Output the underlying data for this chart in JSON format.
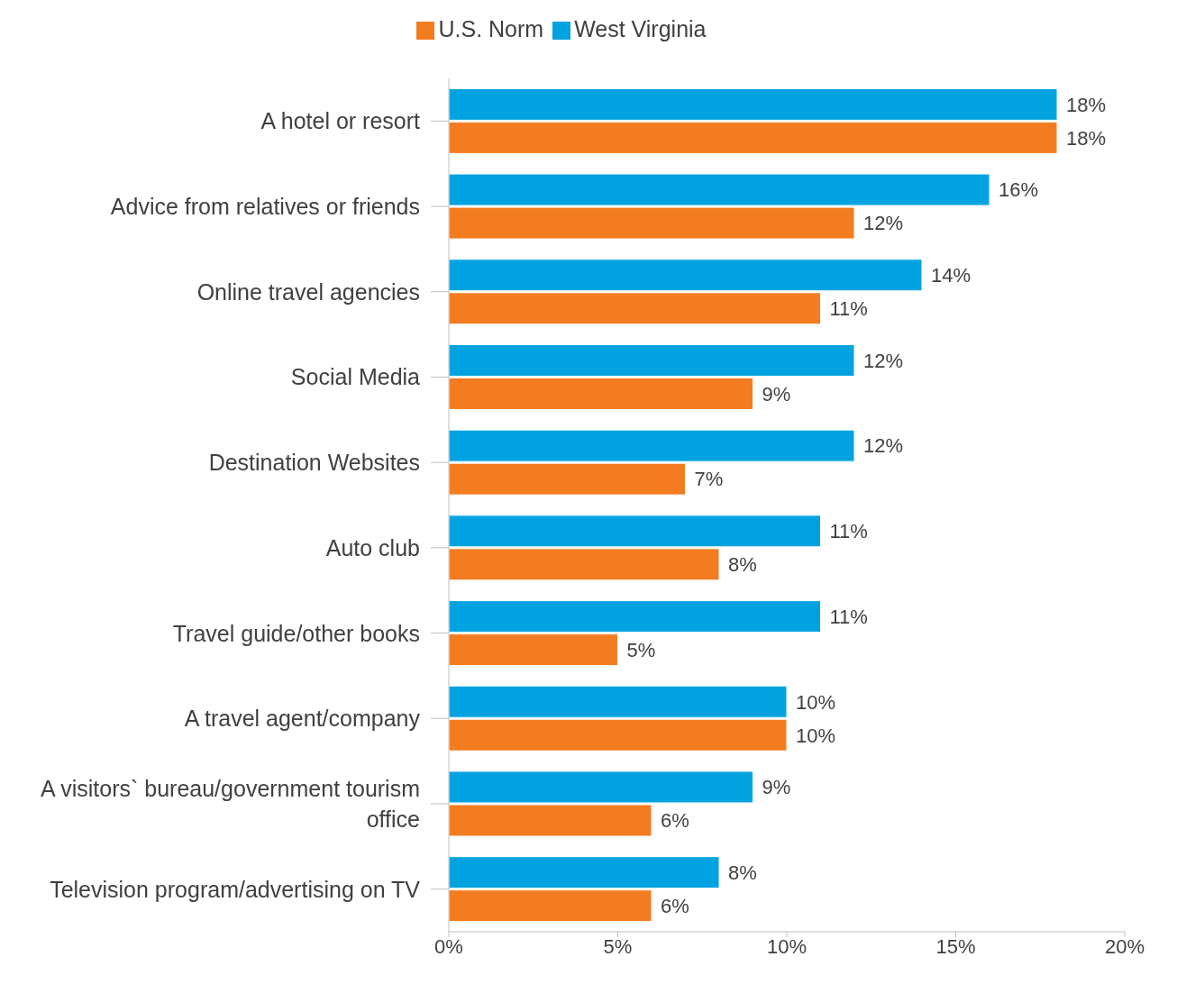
{
  "chart_data": {
    "type": "bar",
    "orientation": "horizontal",
    "categories": [
      "A hotel or resort",
      "Advice from relatives or friends",
      "Online travel agencies",
      "Social Media",
      "Destination Websites",
      "Auto club",
      "Travel guide/other books",
      "A travel agent/company",
      "A visitors` bureau/government tourism office",
      "Television program/advertising on TV"
    ],
    "series": [
      {
        "name": "West Virginia",
        "color": "#00a3e0",
        "values": [
          18,
          16,
          14,
          12,
          12,
          11,
          11,
          10,
          9,
          8
        ],
        "value_labels": [
          "18%",
          "16%",
          "14%",
          "12%",
          "12%",
          "11%",
          "11%",
          "10%",
          "9%",
          "8%"
        ]
      },
      {
        "name": "U.S. Norm",
        "color": "#f47c20",
        "values": [
          18,
          12,
          11,
          9,
          7,
          8,
          5,
          10,
          6,
          6
        ],
        "value_labels": [
          "18%",
          "12%",
          "11%",
          "9%",
          "7%",
          "8%",
          "5%",
          "10%",
          "6%",
          "6%"
        ]
      }
    ],
    "xlim": [
      0,
      20
    ],
    "xticks": [
      {
        "value": 0,
        "label": "0%"
      },
      {
        "value": 5,
        "label": "5%"
      },
      {
        "value": 10,
        "label": "10%"
      },
      {
        "value": 15,
        "label": "15%"
      },
      {
        "value": 20,
        "label": "20%"
      }
    ],
    "grid": false,
    "legend": "top"
  }
}
